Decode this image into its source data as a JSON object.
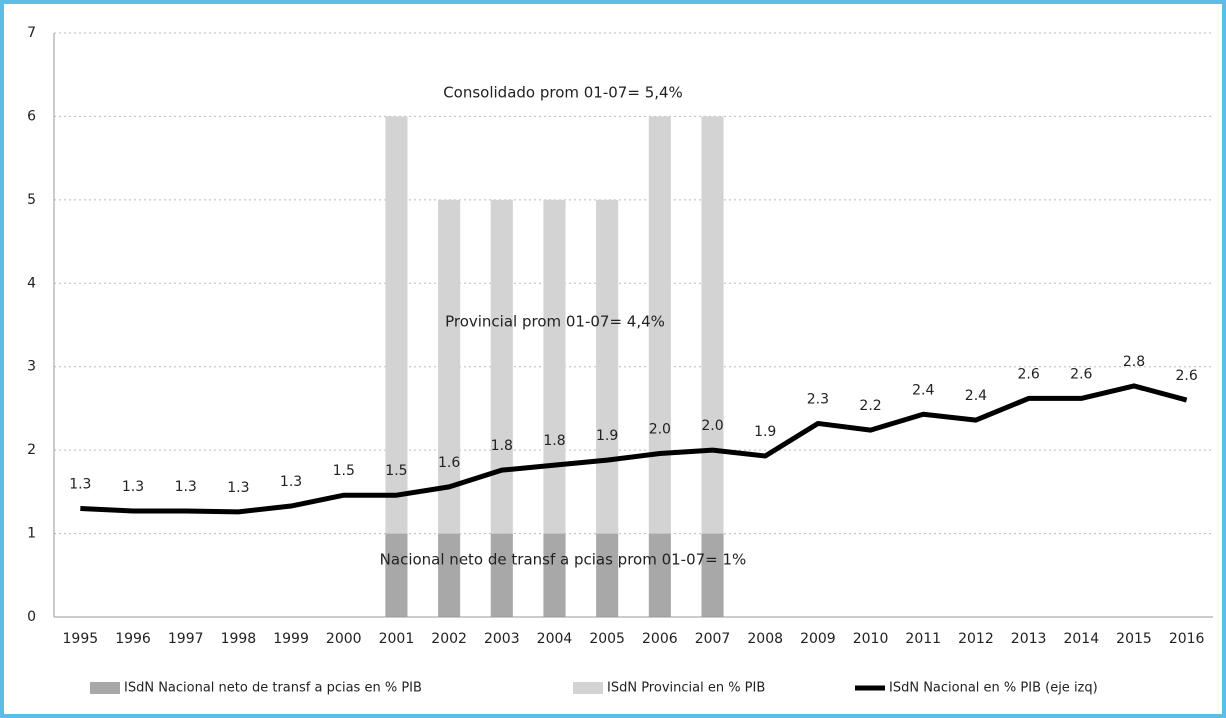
{
  "chart_data": {
    "type": "bar",
    "categories": [
      "1995",
      "1996",
      "1997",
      "1998",
      "1999",
      "2000",
      "2001",
      "2002",
      "2003",
      "2004",
      "2005",
      "2006",
      "2007",
      "2008",
      "2009",
      "2010",
      "2011",
      "2012",
      "2013",
      "2014",
      "2015",
      "2016"
    ],
    "series": [
      {
        "name": "ISdN Nacional neto de transf a pcias en % PIB",
        "type": "bar",
        "color": "#a8a8a8",
        "values": [
          null,
          null,
          null,
          null,
          null,
          null,
          1,
          1,
          1,
          1,
          1,
          1,
          1,
          null,
          null,
          null,
          null,
          null,
          null,
          null,
          null,
          null
        ]
      },
      {
        "name": "ISdN Provincial en % PIB",
        "type": "bar",
        "color": "#d3d3d3",
        "values": [
          null,
          null,
          null,
          null,
          null,
          null,
          5,
          4,
          4,
          4,
          4,
          5,
          5,
          null,
          null,
          null,
          null,
          null,
          null,
          null,
          null,
          null
        ]
      },
      {
        "name": "ISdN Nacional en % PIB (eje izq)",
        "type": "line",
        "color": "#000000",
        "values": [
          1.3,
          1.27,
          1.27,
          1.26,
          1.33,
          1.46,
          1.46,
          1.56,
          1.76,
          1.82,
          1.88,
          1.96,
          2.0,
          1.93,
          2.32,
          2.24,
          2.43,
          2.36,
          2.62,
          2.62,
          2.77,
          2.6
        ],
        "value_labels": [
          "1.3",
          "1.3",
          "1.3",
          "1.3",
          "1.3",
          "1.5",
          "1.5",
          "1.6",
          "1.8",
          "1.8",
          "1.9",
          "2.0",
          "2.0",
          "1.9",
          "2.3",
          "2.2",
          "2.4",
          "2.4",
          "2.6",
          "2.6",
          "2.8",
          "2.6"
        ]
      }
    ],
    "annotations": [
      "Consolidado prom 01-07= 5,4%",
      "Provincial prom 01-07= 4,4%",
      "Nacional neto de transf a pcias prom 01-07= 1%"
    ],
    "ylim": [
      0,
      7
    ],
    "yticks": [
      0,
      1,
      2,
      3,
      4,
      5,
      6,
      7
    ],
    "grid": true,
    "legend": "bottom"
  }
}
